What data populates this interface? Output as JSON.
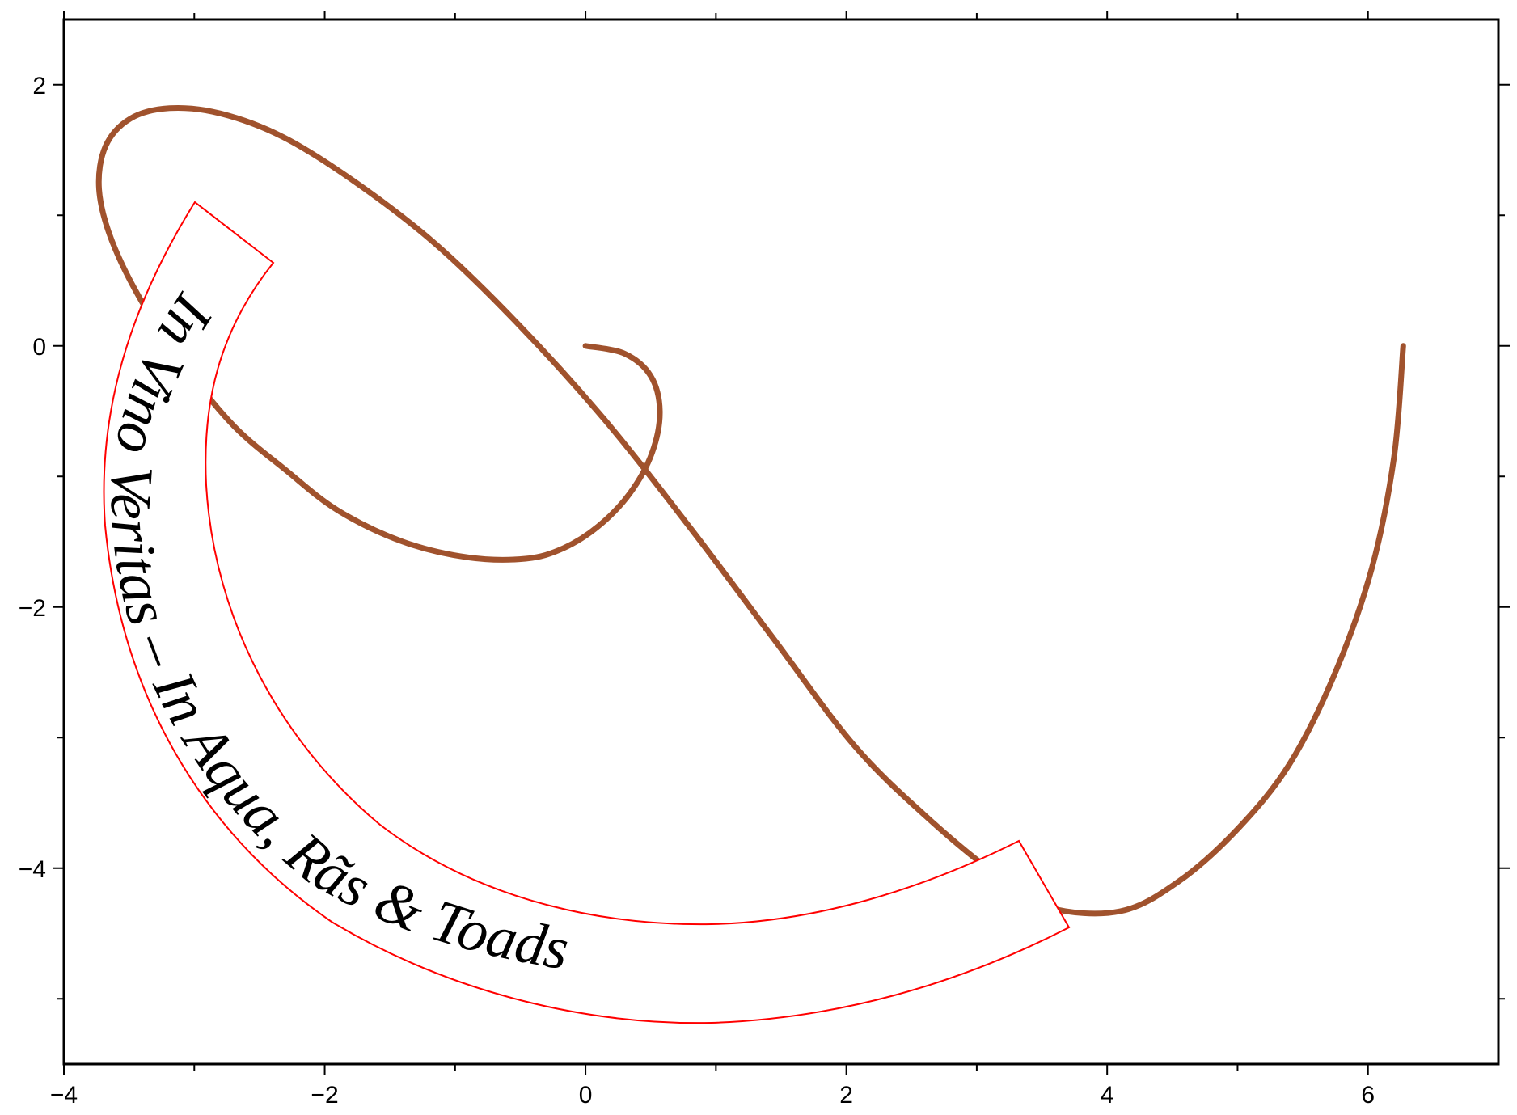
{
  "chart_data": {
    "type": "line",
    "title": "",
    "xlabel": "",
    "ylabel": "",
    "xlim": [
      -4,
      7
    ],
    "ylim": [
      -5.5,
      2.5
    ],
    "x_ticks": [
      -4,
      -2,
      0,
      2,
      4,
      6
    ],
    "x_tick_labels": [
      "−4",
      "−2",
      "0",
      "2",
      "4",
      "6"
    ],
    "y_ticks": [
      2,
      0,
      -2,
      -4
    ],
    "y_tick_labels": [
      "2",
      "0",
      "−2",
      "−4"
    ],
    "x_minor_ticks": [
      -3,
      -1,
      1,
      3,
      5
    ],
    "y_minor_ticks": [
      1,
      -1,
      -3,
      -5
    ],
    "grid": false,
    "series": [
      {
        "color": "#a0522d",
        "curve": "spiral",
        "x": [
          0,
          0.3,
          0.5,
          0.57,
          0.51,
          0.34,
          0.1,
          -0.17,
          -0.46,
          -0.9,
          -1.4,
          -1.9,
          -2.3,
          -2.69,
          -3.04,
          -3.38,
          -3.63,
          -3.73,
          -3.68,
          -3.49,
          -3.19,
          -2.8,
          -2.32,
          -1.76,
          -1.15,
          -0.51,
          0.15,
          0.8,
          1.44,
          2.06,
          2.63,
          3.15,
          3.55,
          4.1,
          4.55,
          5.0,
          5.4,
          5.75,
          6.03,
          6.2,
          6.27
        ],
        "y": [
          0,
          -0.06,
          -0.23,
          -0.5,
          -0.82,
          -1.13,
          -1.38,
          -1.55,
          -1.63,
          -1.62,
          -1.5,
          -1.26,
          -0.95,
          -0.62,
          -0.2,
          0.3,
          0.8,
          1.2,
          1.53,
          1.74,
          1.82,
          1.78,
          1.6,
          1.25,
          0.78,
          0.16,
          -0.57,
          -1.39,
          -2.24,
          -3.06,
          -3.62,
          -4.05,
          -4.3,
          -4.33,
          -4.1,
          -3.7,
          -3.2,
          -2.5,
          -1.7,
          -0.85,
          0
        ]
      }
    ],
    "annotations": [
      {
        "text": "In Vino Veritas  – In Aqua, Rãs & Toads",
        "box_color": "#ff0000",
        "placement": "along-curve"
      }
    ]
  }
}
